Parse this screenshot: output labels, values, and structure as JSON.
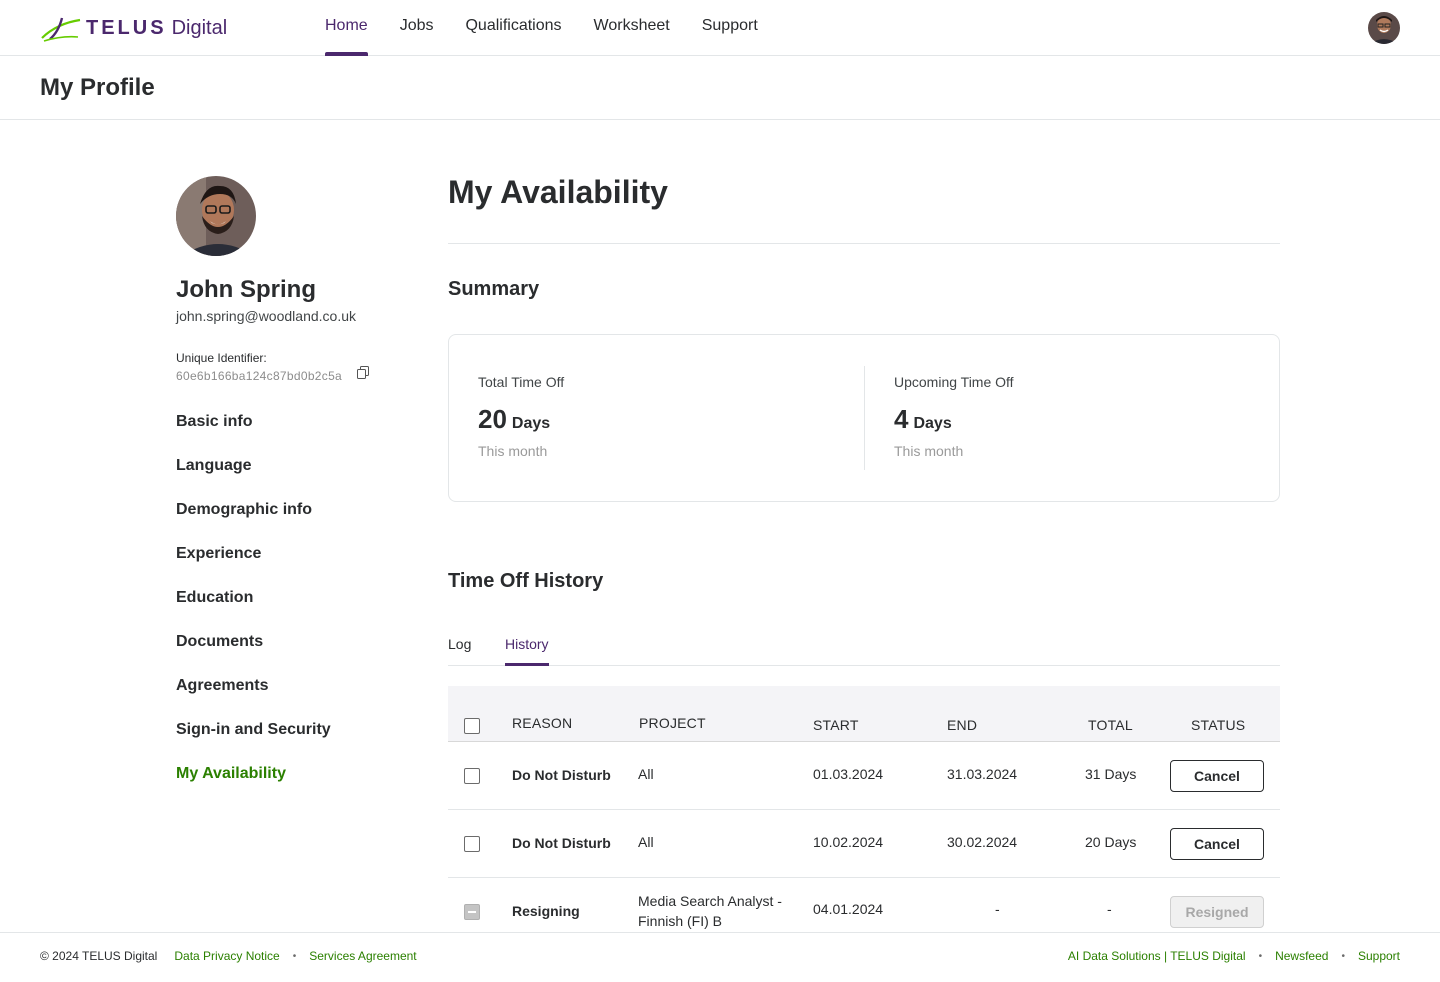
{
  "brand": {
    "name": "TELUS",
    "suffix": "Digital",
    "accent": "#4b286d",
    "link_green": "#2b8000"
  },
  "nav": {
    "items": [
      {
        "label": "Home",
        "active": true
      },
      {
        "label": "Jobs",
        "active": false
      },
      {
        "label": "Qualifications",
        "active": false
      },
      {
        "label": "Worksheet",
        "active": false
      },
      {
        "label": "Support",
        "active": false
      }
    ]
  },
  "page": {
    "title": "My Profile"
  },
  "profile": {
    "name": "John Spring",
    "email": "john.spring@woodland.co.uk",
    "uid_label": "Unique Identifier:",
    "uid_value": "60e6b166ba124c87bd0b2c5a"
  },
  "sidebar": {
    "items": [
      {
        "label": "Basic info",
        "active": false
      },
      {
        "label": "Language",
        "active": false
      },
      {
        "label": "Demographic info",
        "active": false
      },
      {
        "label": "Experience",
        "active": false
      },
      {
        "label": "Education",
        "active": false
      },
      {
        "label": "Documents",
        "active": false
      },
      {
        "label": "Agreements",
        "active": false
      },
      {
        "label": "Sign-in and Security",
        "active": false
      },
      {
        "label": "My Availability",
        "active": true
      }
    ]
  },
  "main": {
    "title": "My Availability",
    "summary": {
      "title": "Summary",
      "total": {
        "label": "Total Time Off",
        "value": "20",
        "unit": "Days",
        "sub": "This month"
      },
      "upcoming": {
        "label": "Upcoming Time Off",
        "value": "4",
        "unit": "Days",
        "sub": "This month"
      }
    },
    "history": {
      "title": "Time Off History",
      "tabs": [
        {
          "label": "Log",
          "active": false
        },
        {
          "label": "History",
          "active": true
        }
      ],
      "columns": {
        "reason": "REASON",
        "project": "PROJECT",
        "start": "START",
        "end": "END",
        "total": "TOTAL",
        "status": "STATUS"
      },
      "rows": [
        {
          "reason": "Do Not Disturb",
          "project": "All",
          "start": "01.03.2024",
          "end": "31.03.2024",
          "total": "31 Days",
          "status": "Cancel"
        },
        {
          "reason": "Do Not Disturb",
          "project": "All",
          "start": "10.02.2024",
          "end": "30.02.2024",
          "total": "20 Days",
          "status": "Cancel"
        },
        {
          "reason": "Resigning",
          "project": "Media Search Analyst - Finnish (FI) B",
          "start": "04.01.2024",
          "end": "-",
          "total": "-",
          "status": "Resigned"
        }
      ]
    }
  },
  "footer": {
    "copyright": "© 2024 TELUS Digital",
    "left_links": [
      "Data Privacy Notice",
      "Services Agreement"
    ],
    "right_links": [
      "AI Data Solutions | TELUS Digital",
      "Newsfeed",
      "Support"
    ],
    "separator": "•"
  },
  "icons": [
    "telus-logo-icon",
    "avatar",
    "copy-icon",
    "checkbox"
  ]
}
